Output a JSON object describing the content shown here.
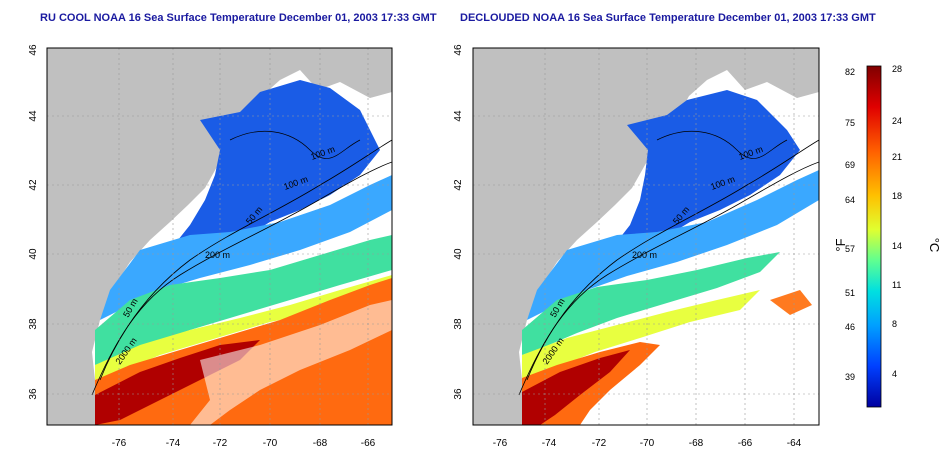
{
  "panels": [
    {
      "title": "RU COOL NOAA 16 Sea Surface Temperature December 01, 2003 17:33 GMT"
    },
    {
      "title": "DECLOUDED NOAA 16 Sea Surface Temperature December 01, 2003 17:33 GMT"
    }
  ],
  "lon_ticks": [
    "-76",
    "-74",
    "-72",
    "-70",
    "-68",
    "-66",
    "-64"
  ],
  "lat_ticks": [
    "36",
    "38",
    "40",
    "42",
    "44",
    "46"
  ],
  "contour_labels": [
    "100 m",
    "100 m",
    "50 m",
    "200 m",
    "50 m",
    "2000 m"
  ],
  "colorbar": {
    "f_ticks": [
      "82",
      "75",
      "69",
      "64",
      "57",
      "51",
      "46",
      "39"
    ],
    "c_ticks": [
      "28",
      "24",
      "21",
      "18",
      "14",
      "11",
      "8",
      "4"
    ],
    "f_unit": "°F",
    "c_unit": "°C",
    "colors": [
      "#800000",
      "#e00000",
      "#ff6000",
      "#ffc000",
      "#e0ff30",
      "#60ff90",
      "#00e0e0",
      "#00a0ff",
      "#0040ff",
      "#0000a0"
    ]
  }
}
